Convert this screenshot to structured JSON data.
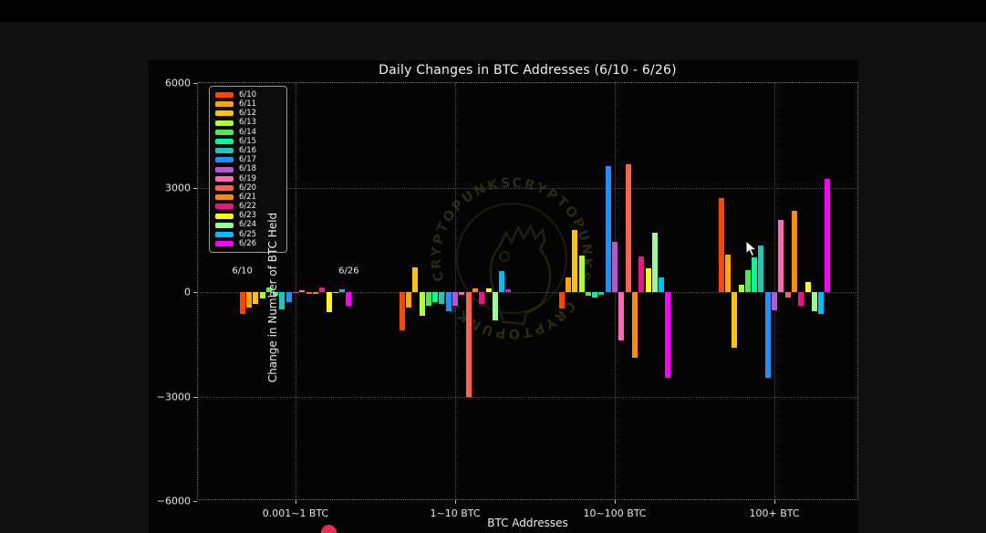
{
  "chart": {
    "title": "Daily Changes in BTC Addresses (6/10 - 6/26)",
    "xlabel": "BTC Addresses",
    "ylabel": "Change in Number of BTC Held"
  },
  "chart_data": {
    "type": "bar",
    "title": "Daily Changes in BTC Addresses (6/10 - 6/26)",
    "xlabel": "BTC Addresses",
    "ylabel": "Change in Number of BTC Held",
    "ylim": [
      -6000,
      6000
    ],
    "yticks": [
      6000,
      3000,
      0,
      -3000,
      -6000
    ],
    "grid": true,
    "legend_position": "upper left",
    "categories": [
      "0.001~1 BTC",
      "1~10 BTC",
      "10~100 BTC",
      "100+ BTC"
    ],
    "series": [
      {
        "name": "6/10",
        "color": "#ff4500",
        "values": [
          -620,
          -1100,
          -470,
          2700
        ]
      },
      {
        "name": "6/11",
        "color": "#ffa500",
        "values": [
          -450,
          -450,
          430,
          1070
        ]
      },
      {
        "name": "6/12",
        "color": "#ffc400",
        "values": [
          -350,
          700,
          1780,
          -1600
        ]
      },
      {
        "name": "6/13",
        "color": "#adff2f",
        "values": [
          -190,
          -680,
          1040,
          220
        ]
      },
      {
        "name": "6/14",
        "color": "#52e852",
        "values": [
          140,
          -400,
          -110,
          630
        ]
      },
      {
        "name": "6/15",
        "color": "#00fa9a",
        "values": [
          -100,
          -300,
          -170,
          1000
        ]
      },
      {
        "name": "6/16",
        "color": "#1fc8b8",
        "values": [
          -490,
          -350,
          -90,
          1340
        ]
      },
      {
        "name": "6/17",
        "color": "#1e90ff",
        "values": [
          -280,
          -550,
          3610,
          -2450
        ]
      },
      {
        "name": "6/18",
        "color": "#ba55d3",
        "values": [
          -30,
          -390,
          1430,
          -520
        ]
      },
      {
        "name": "6/19",
        "color": "#ff69b4",
        "values": [
          40,
          -90,
          -1390,
          2080
        ]
      },
      {
        "name": "6/20",
        "color": "#ff6347",
        "values": [
          -60,
          -3000,
          3660,
          -160
        ]
      },
      {
        "name": "6/21",
        "color": "#ff8c00",
        "values": [
          -60,
          100,
          -1890,
          2340
        ]
      },
      {
        "name": "6/22",
        "color": "#ee1289",
        "values": [
          130,
          -350,
          1010,
          -390
        ]
      },
      {
        "name": "6/23",
        "color": "#ffff00",
        "values": [
          -580,
          100,
          670,
          300
        ]
      },
      {
        "name": "6/24",
        "color": "#98fb98",
        "values": [
          -30,
          -820,
          1690,
          -550
        ]
      },
      {
        "name": "6/25",
        "color": "#00bfff",
        "values": [
          70,
          610,
          420,
          -630
        ]
      },
      {
        "name": "6/26",
        "color": "#ff00ff",
        "values": [
          -380,
          90,
          -2470,
          3250
        ]
      }
    ],
    "annotations": [
      {
        "text": "6/10",
        "group": 0,
        "series": 0
      },
      {
        "text": "6/26",
        "group": 0,
        "series": 16
      }
    ]
  },
  "watermark": {
    "ring_text": "CRYPTOPUNKS · CRYPTOPUNKS · CRYPTOPUNKS ·"
  }
}
